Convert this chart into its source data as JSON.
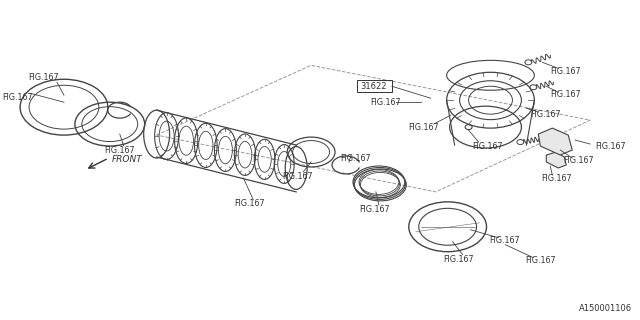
{
  "bg_color": "#ffffff",
  "line_color": "#444444",
  "text_color": "#333333",
  "fig_label": "FIG.167",
  "part_label": "31622",
  "diagram_code": "A150001106",
  "front_label": "FRONT",
  "figsize": [
    6.4,
    3.2
  ],
  "dpi": 100
}
